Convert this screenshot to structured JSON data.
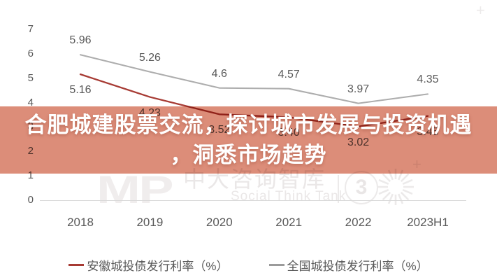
{
  "banner": {
    "line1": "合肥城建股票交流，探讨城市发展与投资机遇",
    "line2": "，洞悉市场趋势",
    "bg_color": "#DC8D79",
    "text_color": "#FFFFFF"
  },
  "watermark": {
    "logo_text": "MP",
    "brand_cn": "中大咨询智库",
    "brand_en": "Social Think Tank",
    "badge_number": "3",
    "plus_glyph": "+"
  },
  "chart_data": {
    "type": "line",
    "categories": [
      "2018",
      "2019",
      "2020",
      "2021",
      "2022",
      "2023H1"
    ],
    "series": [
      {
        "name": "安徽城投债发行利率（%）",
        "color": "#A73B34",
        "label_position": "below",
        "values": [
          5.16,
          4.23,
          3.52,
          3.4,
          3.02,
          3.45
        ],
        "labels": [
          "5.16",
          "4.23",
          "3.52",
          "3.40",
          "3.02",
          "3.45"
        ]
      },
      {
        "name": "全国城投债发行利率（%）",
        "color": "#ADADAD",
        "label_position": "above",
        "values": [
          5.96,
          5.26,
          4.6,
          4.57,
          3.97,
          4.35
        ],
        "labels": [
          "5.96",
          "5.26",
          "4.6",
          "4.57",
          "3.97",
          "4.35"
        ]
      }
    ],
    "ylim": [
      0,
      7
    ],
    "yticks": [
      0,
      1,
      2,
      3,
      4,
      5,
      6,
      7
    ],
    "grid": false,
    "legend_position": "bottom",
    "label_color": "#595959",
    "axis_color": "#D9D9D9"
  }
}
